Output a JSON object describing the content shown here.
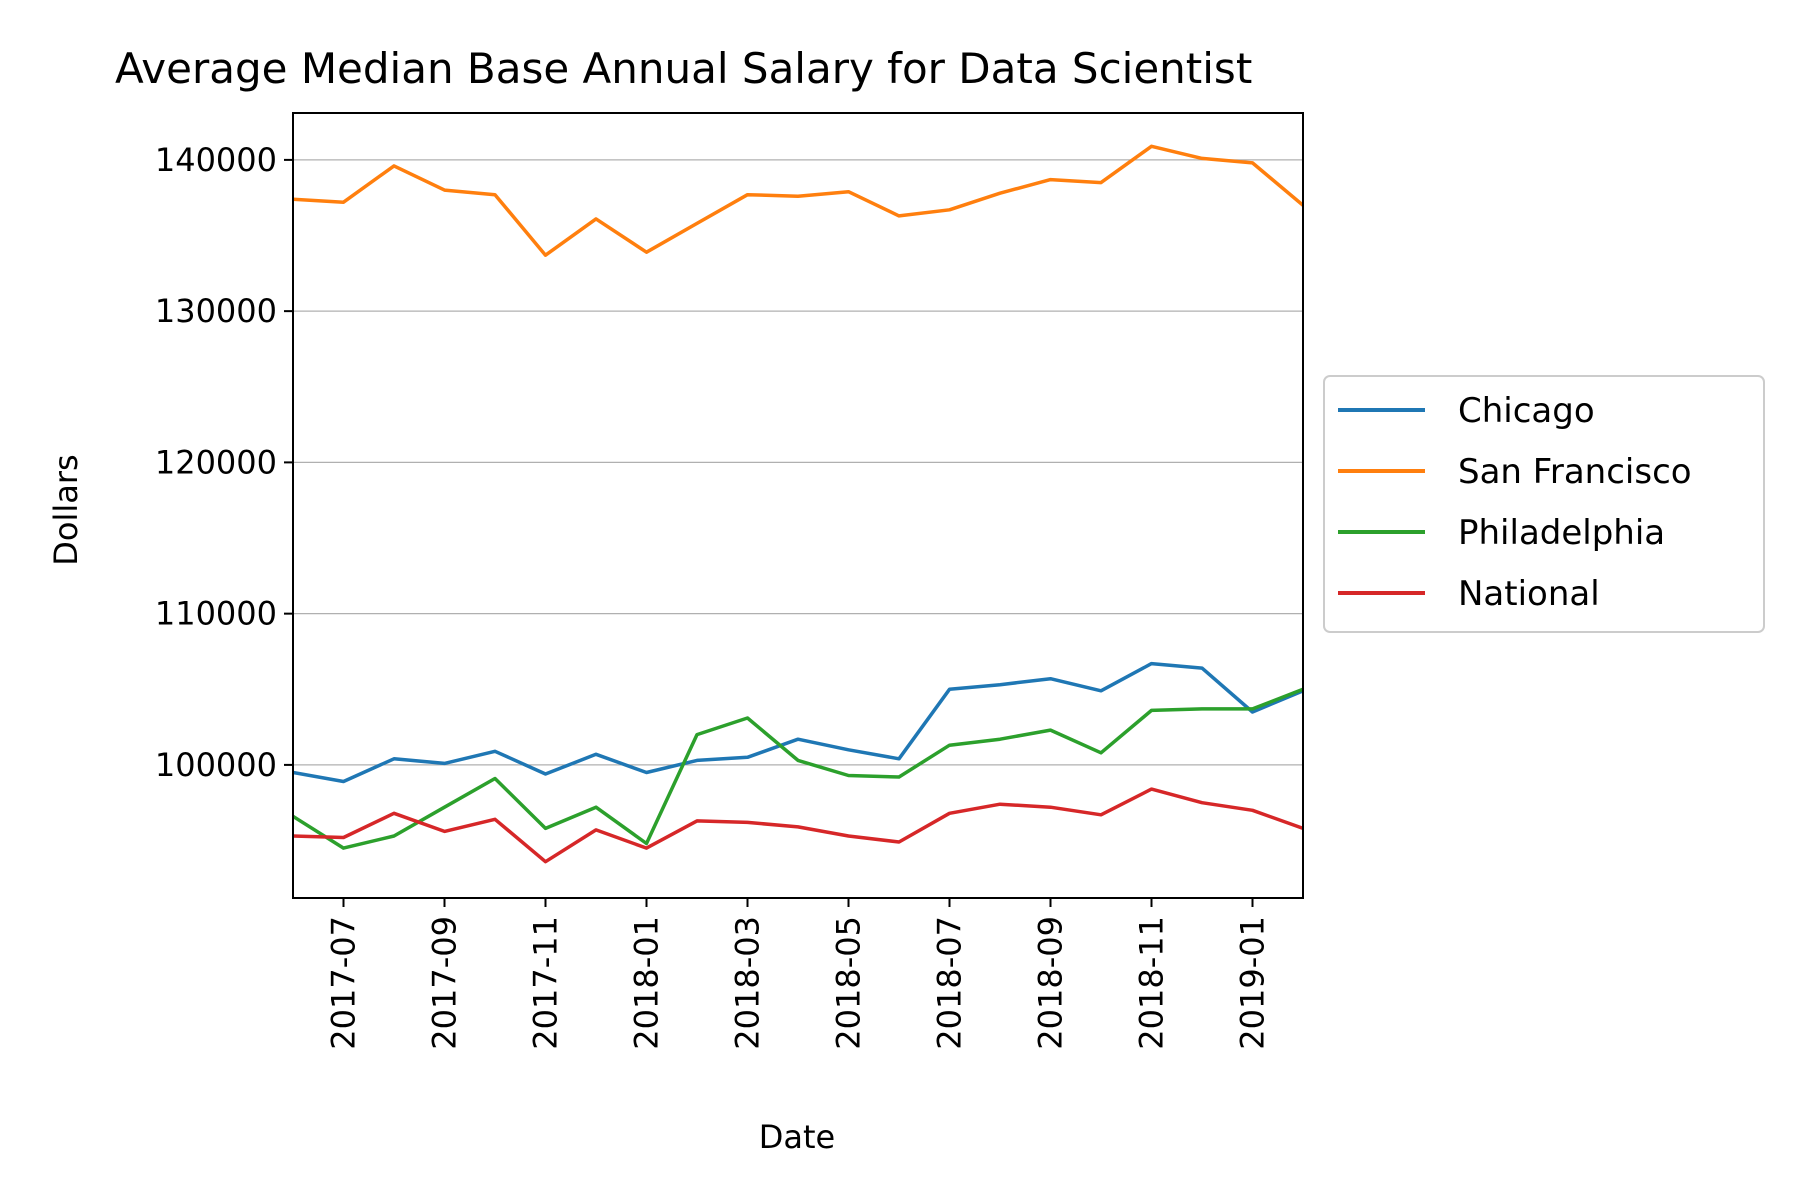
{
  "chart_data": {
    "type": "line",
    "title": "Average Median Base Annual Salary for Data Scientist",
    "xlabel": "Date",
    "ylabel": "Dollars",
    "x": [
      "2017-06",
      "2017-07",
      "2017-08",
      "2017-09",
      "2017-10",
      "2017-11",
      "2017-12",
      "2018-01",
      "2018-02",
      "2018-03",
      "2018-04",
      "2018-05",
      "2018-06",
      "2018-07",
      "2018-08",
      "2018-09",
      "2018-10",
      "2018-11",
      "2018-12",
      "2019-01",
      "2019-02"
    ],
    "xlim": [
      "2017-06",
      "2019-02"
    ],
    "x_ticks": [
      "2017-07",
      "2017-09",
      "2017-11",
      "2018-01",
      "2018-03",
      "2018-05",
      "2018-07",
      "2018-09",
      "2018-11",
      "2019-01"
    ],
    "ylim": [
      91200,
      143100
    ],
    "y_ticks": [
      100000,
      110000,
      120000,
      130000,
      140000
    ],
    "y_tick_labels": [
      "100000",
      "110000",
      "120000",
      "130000",
      "140000"
    ],
    "grid": "horizontal",
    "legend_position": "right-outside",
    "series": [
      {
        "name": "Chicago",
        "color": "#1f77b4",
        "values": [
          99500,
          98900,
          100400,
          100100,
          100900,
          99400,
          100700,
          99500,
          100300,
          100500,
          101700,
          101000,
          100400,
          105000,
          105300,
          105700,
          104900,
          106700,
          106400,
          103500,
          104900
        ]
      },
      {
        "name": "San Francisco",
        "color": "#ff7f0e",
        "values": [
          137400,
          137200,
          139600,
          138000,
          137700,
          133700,
          136100,
          133900,
          135800,
          137700,
          137600,
          137900,
          136300,
          136700,
          137800,
          138700,
          138500,
          140900,
          140100,
          139800,
          137000
        ]
      },
      {
        "name": "Philadelphia",
        "color": "#2ca02c",
        "values": [
          96600,
          94500,
          95300,
          97200,
          99100,
          95800,
          97200,
          94800,
          102000,
          103100,
          100300,
          99300,
          99200,
          101300,
          101700,
          102300,
          100800,
          103600,
          103700,
          103700,
          105000
        ]
      },
      {
        "name": "National",
        "color": "#d62728",
        "values": [
          95300,
          95200,
          96800,
          95600,
          96400,
          93600,
          95700,
          94500,
          96300,
          96200,
          95900,
          95300,
          94900,
          96800,
          97400,
          97200,
          96700,
          98400,
          97500,
          97000,
          95800
        ]
      }
    ]
  }
}
